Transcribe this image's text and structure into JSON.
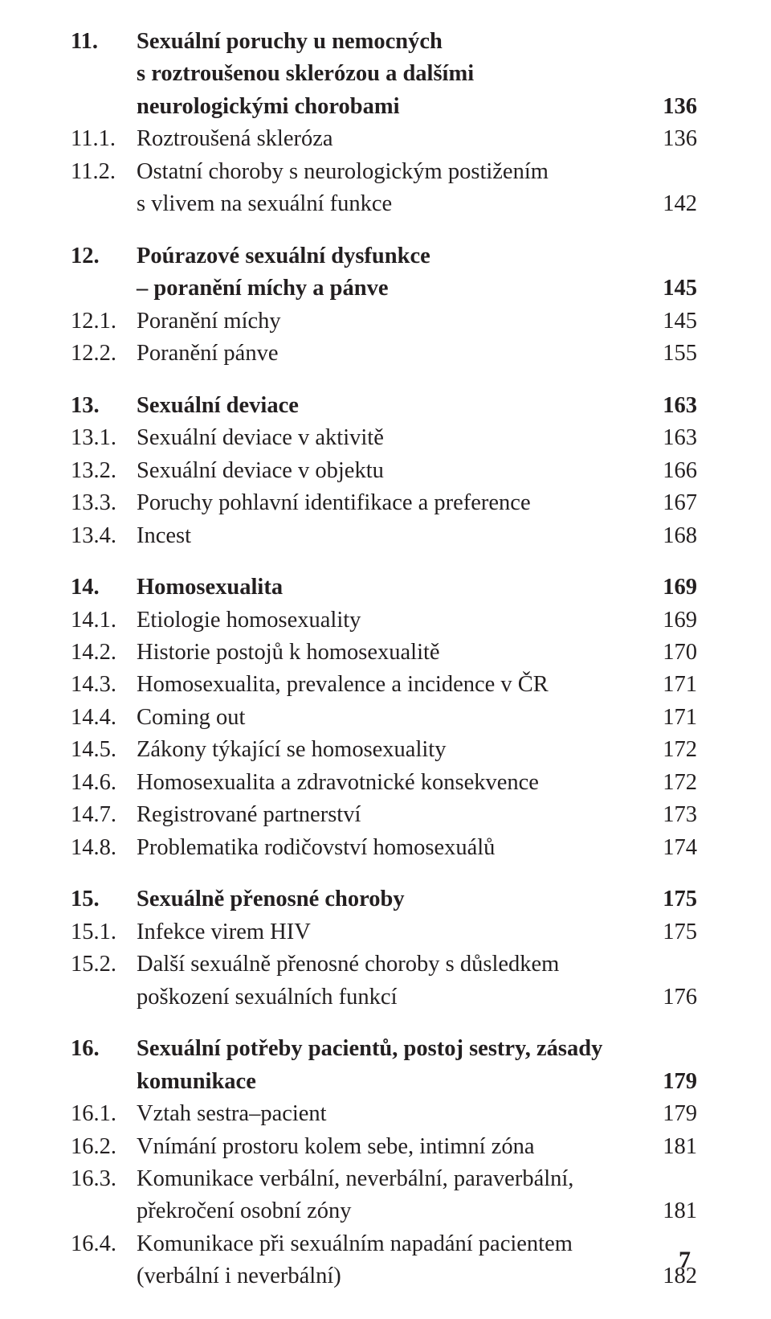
{
  "page_number": "7",
  "blocks": [
    [
      {
        "num": "11.",
        "bold": true,
        "lines": [
          "Sexuální poruchy u nemocných",
          "s roztroušenou sklerózou a dalšími",
          "neurologickými chorobami"
        ],
        "page": "136"
      },
      {
        "num": "11.1.",
        "bold": false,
        "lines": [
          "Roztroušená skleróza"
        ],
        "page": "136"
      },
      {
        "num": "11.2.",
        "bold": false,
        "lines": [
          "Ostatní choroby s neurologickým postižením",
          "s vlivem na sexuální funkce"
        ],
        "page": "142"
      }
    ],
    [
      {
        "num": "12.",
        "bold": true,
        "lines": [
          "Poúrazové sexuální dysfunkce",
          "– poranění míchy a pánve"
        ],
        "page": "145"
      },
      {
        "num": "12.1.",
        "bold": false,
        "lines": [
          "Poranění míchy"
        ],
        "page": "145"
      },
      {
        "num": "12.2.",
        "bold": false,
        "lines": [
          "Poranění pánve"
        ],
        "page": "155"
      }
    ],
    [
      {
        "num": "13.",
        "bold": true,
        "lines": [
          "Sexuální deviace"
        ],
        "page": "163"
      },
      {
        "num": "13.1.",
        "bold": false,
        "lines": [
          "Sexuální deviace v aktivitě"
        ],
        "page": "163"
      },
      {
        "num": "13.2.",
        "bold": false,
        "lines": [
          "Sexuální deviace v objektu"
        ],
        "page": "166"
      },
      {
        "num": "13.3.",
        "bold": false,
        "lines": [
          "Poruchy pohlavní identifikace a preference"
        ],
        "page": "167"
      },
      {
        "num": "13.4.",
        "bold": false,
        "lines": [
          "Incest"
        ],
        "page": "168"
      }
    ],
    [
      {
        "num": "14.",
        "bold": true,
        "lines": [
          "Homosexualita"
        ],
        "page": "169"
      },
      {
        "num": "14.1.",
        "bold": false,
        "lines": [
          "Etiologie homosexuality"
        ],
        "page": "169"
      },
      {
        "num": "14.2.",
        "bold": false,
        "lines": [
          "Historie postojů k homosexualitě"
        ],
        "page": "170"
      },
      {
        "num": "14.3.",
        "bold": false,
        "lines": [
          "Homosexualita, prevalence a incidence v ČR"
        ],
        "page": "171"
      },
      {
        "num": "14.4.",
        "bold": false,
        "lines": [
          "Coming out"
        ],
        "page": "171"
      },
      {
        "num": "14.5.",
        "bold": false,
        "lines": [
          "Zákony týkající se homosexuality"
        ],
        "page": "172"
      },
      {
        "num": "14.6.",
        "bold": false,
        "lines": [
          "Homosexualita a zdravotnické konsekvence"
        ],
        "page": "172"
      },
      {
        "num": "14.7.",
        "bold": false,
        "lines": [
          "Registrované partnerství"
        ],
        "page": "173"
      },
      {
        "num": "14.8.",
        "bold": false,
        "lines": [
          "Problematika rodičovství homosexuálů"
        ],
        "page": "174"
      }
    ],
    [
      {
        "num": "15.",
        "bold": true,
        "lines": [
          "Sexuálně přenosné choroby"
        ],
        "page": "175"
      },
      {
        "num": "15.1.",
        "bold": false,
        "lines": [
          "Infekce virem HIV"
        ],
        "page": "175"
      },
      {
        "num": "15.2.",
        "bold": false,
        "lines": [
          "Další sexuálně přenosné choroby s důsledkem",
          "poškození sexuálních funkcí"
        ],
        "page": "176"
      }
    ],
    [
      {
        "num": "16.",
        "bold": true,
        "lines": [
          "Sexuální potřeby pacientů, postoj sestry, zásady",
          "komunikace"
        ],
        "page": "179"
      },
      {
        "num": "16.1.",
        "bold": false,
        "lines": [
          "Vztah sestra–pacient"
        ],
        "page": "179"
      },
      {
        "num": "16.2.",
        "bold": false,
        "lines": [
          "Vnímání prostoru kolem sebe, intimní zóna"
        ],
        "page": "181"
      },
      {
        "num": "16.3.",
        "bold": false,
        "lines": [
          "Komunikace verbální, neverbální, paraverbální,",
          "překročení osobní zóny"
        ],
        "page": "181"
      },
      {
        "num": "16.4.",
        "bold": false,
        "lines": [
          "Komunikace při sexuálním napadání pacientem",
          "(verbální i neverbální)"
        ],
        "page": "182"
      }
    ]
  ]
}
